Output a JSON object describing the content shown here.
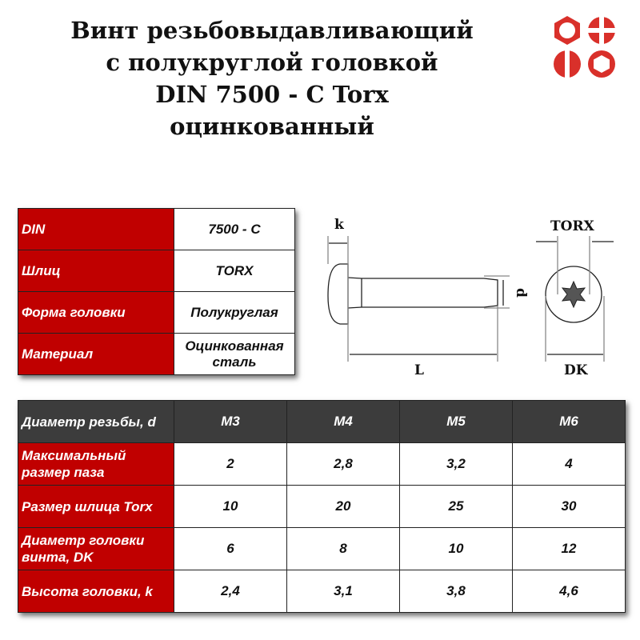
{
  "title": {
    "line1": "Винт резьбовыдавливающий",
    "line2": "с полукруглой головкой",
    "line3": "DIN 7500 - C Torx",
    "line4": "оцинкованный"
  },
  "colors": {
    "accent": "#c00000",
    "header": "#3c3c3c"
  },
  "logo": {
    "icons": [
      "hex-nut-icon",
      "cross-slot-icon",
      "straight-slot-icon",
      "hex-socket-icon"
    ]
  },
  "specs": [
    {
      "label": "DIN",
      "value": "7500 - C"
    },
    {
      "label": "Шлиц",
      "value": "TORX"
    },
    {
      "label": "Форма головки",
      "value": "Полукруглая"
    },
    {
      "label": "Материал",
      "value": "Оцинкованная сталь"
    }
  ],
  "drawing": {
    "k": "k",
    "d": "d",
    "L": "L",
    "torx": "TORX",
    "dk": "DK"
  },
  "sizes": {
    "header": {
      "label": "Диаметр резьбы, d",
      "values": [
        "M3",
        "M4",
        "M5",
        "M6"
      ]
    },
    "rows": [
      {
        "label": "Максимальный размер паза",
        "values": [
          "2",
          "2,8",
          "3,2",
          "4"
        ]
      },
      {
        "label": "Размер шлица Torx",
        "values": [
          "10",
          "20",
          "25",
          "30"
        ]
      },
      {
        "label": "Диаметр головки винта, DK",
        "values": [
          "6",
          "8",
          "10",
          "12"
        ]
      },
      {
        "label": "Высота головки, k",
        "values": [
          "2,4",
          "3,1",
          "3,8",
          "4,6"
        ]
      }
    ]
  }
}
